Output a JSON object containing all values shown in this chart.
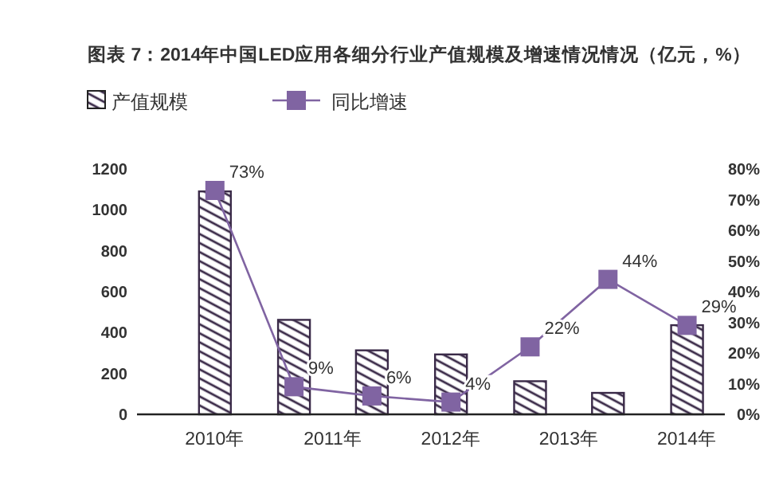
{
  "chart_data": {
    "type": "bar",
    "title": "图表 7：2014年中国LED应用各细分行业产值规模及增速情况情况（亿元，%）",
    "x": [
      2010,
      2010.67,
      2011.33,
      2012,
      2012.67,
      2013.33,
      2014
    ],
    "xlim": [
      2009.34,
      2014.32
    ],
    "xticks": [
      {
        "value": 2010,
        "label": "2010年"
      },
      {
        "value": 2011,
        "label": "2011年"
      },
      {
        "value": 2012,
        "label": "2012年"
      },
      {
        "value": 2013,
        "label": "2013年"
      },
      {
        "value": 2014,
        "label": "2014年"
      }
    ],
    "ylim": [
      0,
      1200
    ],
    "yticks": [
      0,
      200,
      400,
      600,
      800,
      1000,
      1200
    ],
    "y2lim": [
      0,
      80
    ],
    "y2ticks": [
      {
        "value": 0,
        "label": "0%"
      },
      {
        "value": 10,
        "label": "10%"
      },
      {
        "value": 20,
        "label": "20%"
      },
      {
        "value": 30,
        "label": "30%"
      },
      {
        "value": 40,
        "label": "40%"
      },
      {
        "value": 50,
        "label": "50%"
      },
      {
        "value": 60,
        "label": "60%"
      },
      {
        "value": 70,
        "label": "70%"
      },
      {
        "value": 80,
        "label": "80%"
      }
    ],
    "series": [
      {
        "name": "产值规模",
        "color": "#3a2a48",
        "values": [
          1090,
          462,
          313,
          293,
          162,
          105,
          436
        ]
      },
      {
        "name": "同比增速",
        "type": "line",
        "axis": "y2",
        "color": "#8064a2",
        "marker": "square",
        "values": [
          73,
          9,
          6,
          4,
          22,
          44,
          29
        ],
        "value_labels": [
          "73%",
          "9%",
          "6%",
          "4%",
          "22%",
          "44%",
          "29%"
        ]
      }
    ],
    "legend": "top left",
    "grid": false
  }
}
